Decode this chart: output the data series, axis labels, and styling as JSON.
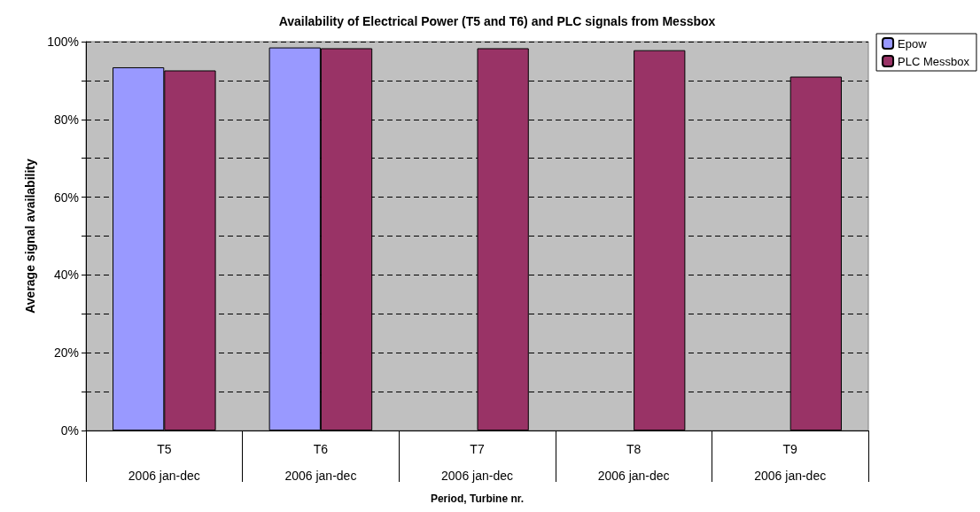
{
  "chart_data": {
    "type": "bar",
    "title": "Availability of Electrical Power (T5 and T6) and PLC signals from Messbox",
    "xlabel": "Period, Turbine nr.",
    "ylabel": "Average signal availability",
    "categories": [
      "T5\n2006 jan-dec",
      "T6\n2006 jan-dec",
      "T7\n2006 jan-dec",
      "T8\n2006 jan-dec",
      "T9\n2006 jan-dec"
    ],
    "series": [
      {
        "name": "Epow",
        "color": "#9999ff",
        "values": [
          93.4,
          98.5,
          null,
          null,
          null
        ]
      },
      {
        "name": "PLC Messbox",
        "color": "#993366",
        "values": [
          92.6,
          98.3,
          98.3,
          97.8,
          91.0
        ]
      }
    ],
    "ylim": [
      0,
      100
    ],
    "yticks": [
      {
        "value": 0,
        "label": "0%"
      },
      {
        "value": 10,
        "label": null
      },
      {
        "value": 20,
        "label": "20%"
      },
      {
        "value": 30,
        "label": null
      },
      {
        "value": 40,
        "label": "40%"
      },
      {
        "value": 50,
        "label": null
      },
      {
        "value": 60,
        "label": "60%"
      },
      {
        "value": 70,
        "label": null
      },
      {
        "value": 80,
        "label": "80%"
      },
      {
        "value": 90,
        "label": null
      },
      {
        "value": 100,
        "label": "100%"
      }
    ],
    "grid": true,
    "legend": "top right"
  }
}
